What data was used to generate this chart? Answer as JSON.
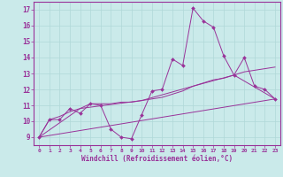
{
  "xlabel": "Windchill (Refroidissement éolien,°C)",
  "bg_color": "#caeaea",
  "grid_color": "#b0d8d8",
  "line_color": "#993399",
  "x_ticks": [
    0,
    1,
    2,
    3,
    4,
    5,
    6,
    7,
    8,
    9,
    10,
    11,
    12,
    13,
    14,
    15,
    16,
    17,
    18,
    19,
    20,
    21,
    22,
    23
  ],
  "y_ticks": [
    9,
    10,
    11,
    12,
    13,
    14,
    15,
    16,
    17
  ],
  "xlim": [
    -0.5,
    23.5
  ],
  "ylim": [
    8.5,
    17.5
  ],
  "series1_x": [
    0,
    1,
    2,
    3,
    4,
    5,
    6,
    7,
    8,
    9,
    10,
    11,
    12,
    13,
    14,
    15,
    16,
    17,
    18,
    19,
    20,
    21,
    22,
    23
  ],
  "series1_y": [
    9.0,
    10.1,
    10.1,
    10.8,
    10.5,
    11.1,
    11.0,
    9.5,
    9.0,
    8.9,
    10.4,
    11.9,
    12.0,
    13.9,
    13.5,
    17.1,
    16.3,
    15.9,
    14.1,
    12.9,
    14.0,
    12.2,
    12.0,
    11.4
  ],
  "series2_x": [
    0,
    1,
    2,
    3,
    4,
    5,
    6,
    7,
    8,
    9,
    10,
    11,
    12,
    13,
    14,
    15,
    16,
    17,
    18,
    19,
    20,
    21,
    22,
    23
  ],
  "series2_y": [
    9.0,
    10.1,
    10.3,
    10.6,
    10.8,
    11.1,
    11.1,
    11.1,
    11.2,
    11.2,
    11.3,
    11.4,
    11.5,
    11.7,
    11.9,
    12.2,
    12.4,
    12.6,
    12.7,
    12.9,
    13.1,
    13.2,
    13.3,
    13.4
  ],
  "series3_x": [
    0,
    23
  ],
  "series3_y": [
    9.0,
    11.4
  ],
  "series4_x": [
    0,
    4,
    10,
    15,
    19,
    23
  ],
  "series4_y": [
    9.0,
    10.8,
    11.3,
    12.2,
    12.9,
    11.4
  ]
}
